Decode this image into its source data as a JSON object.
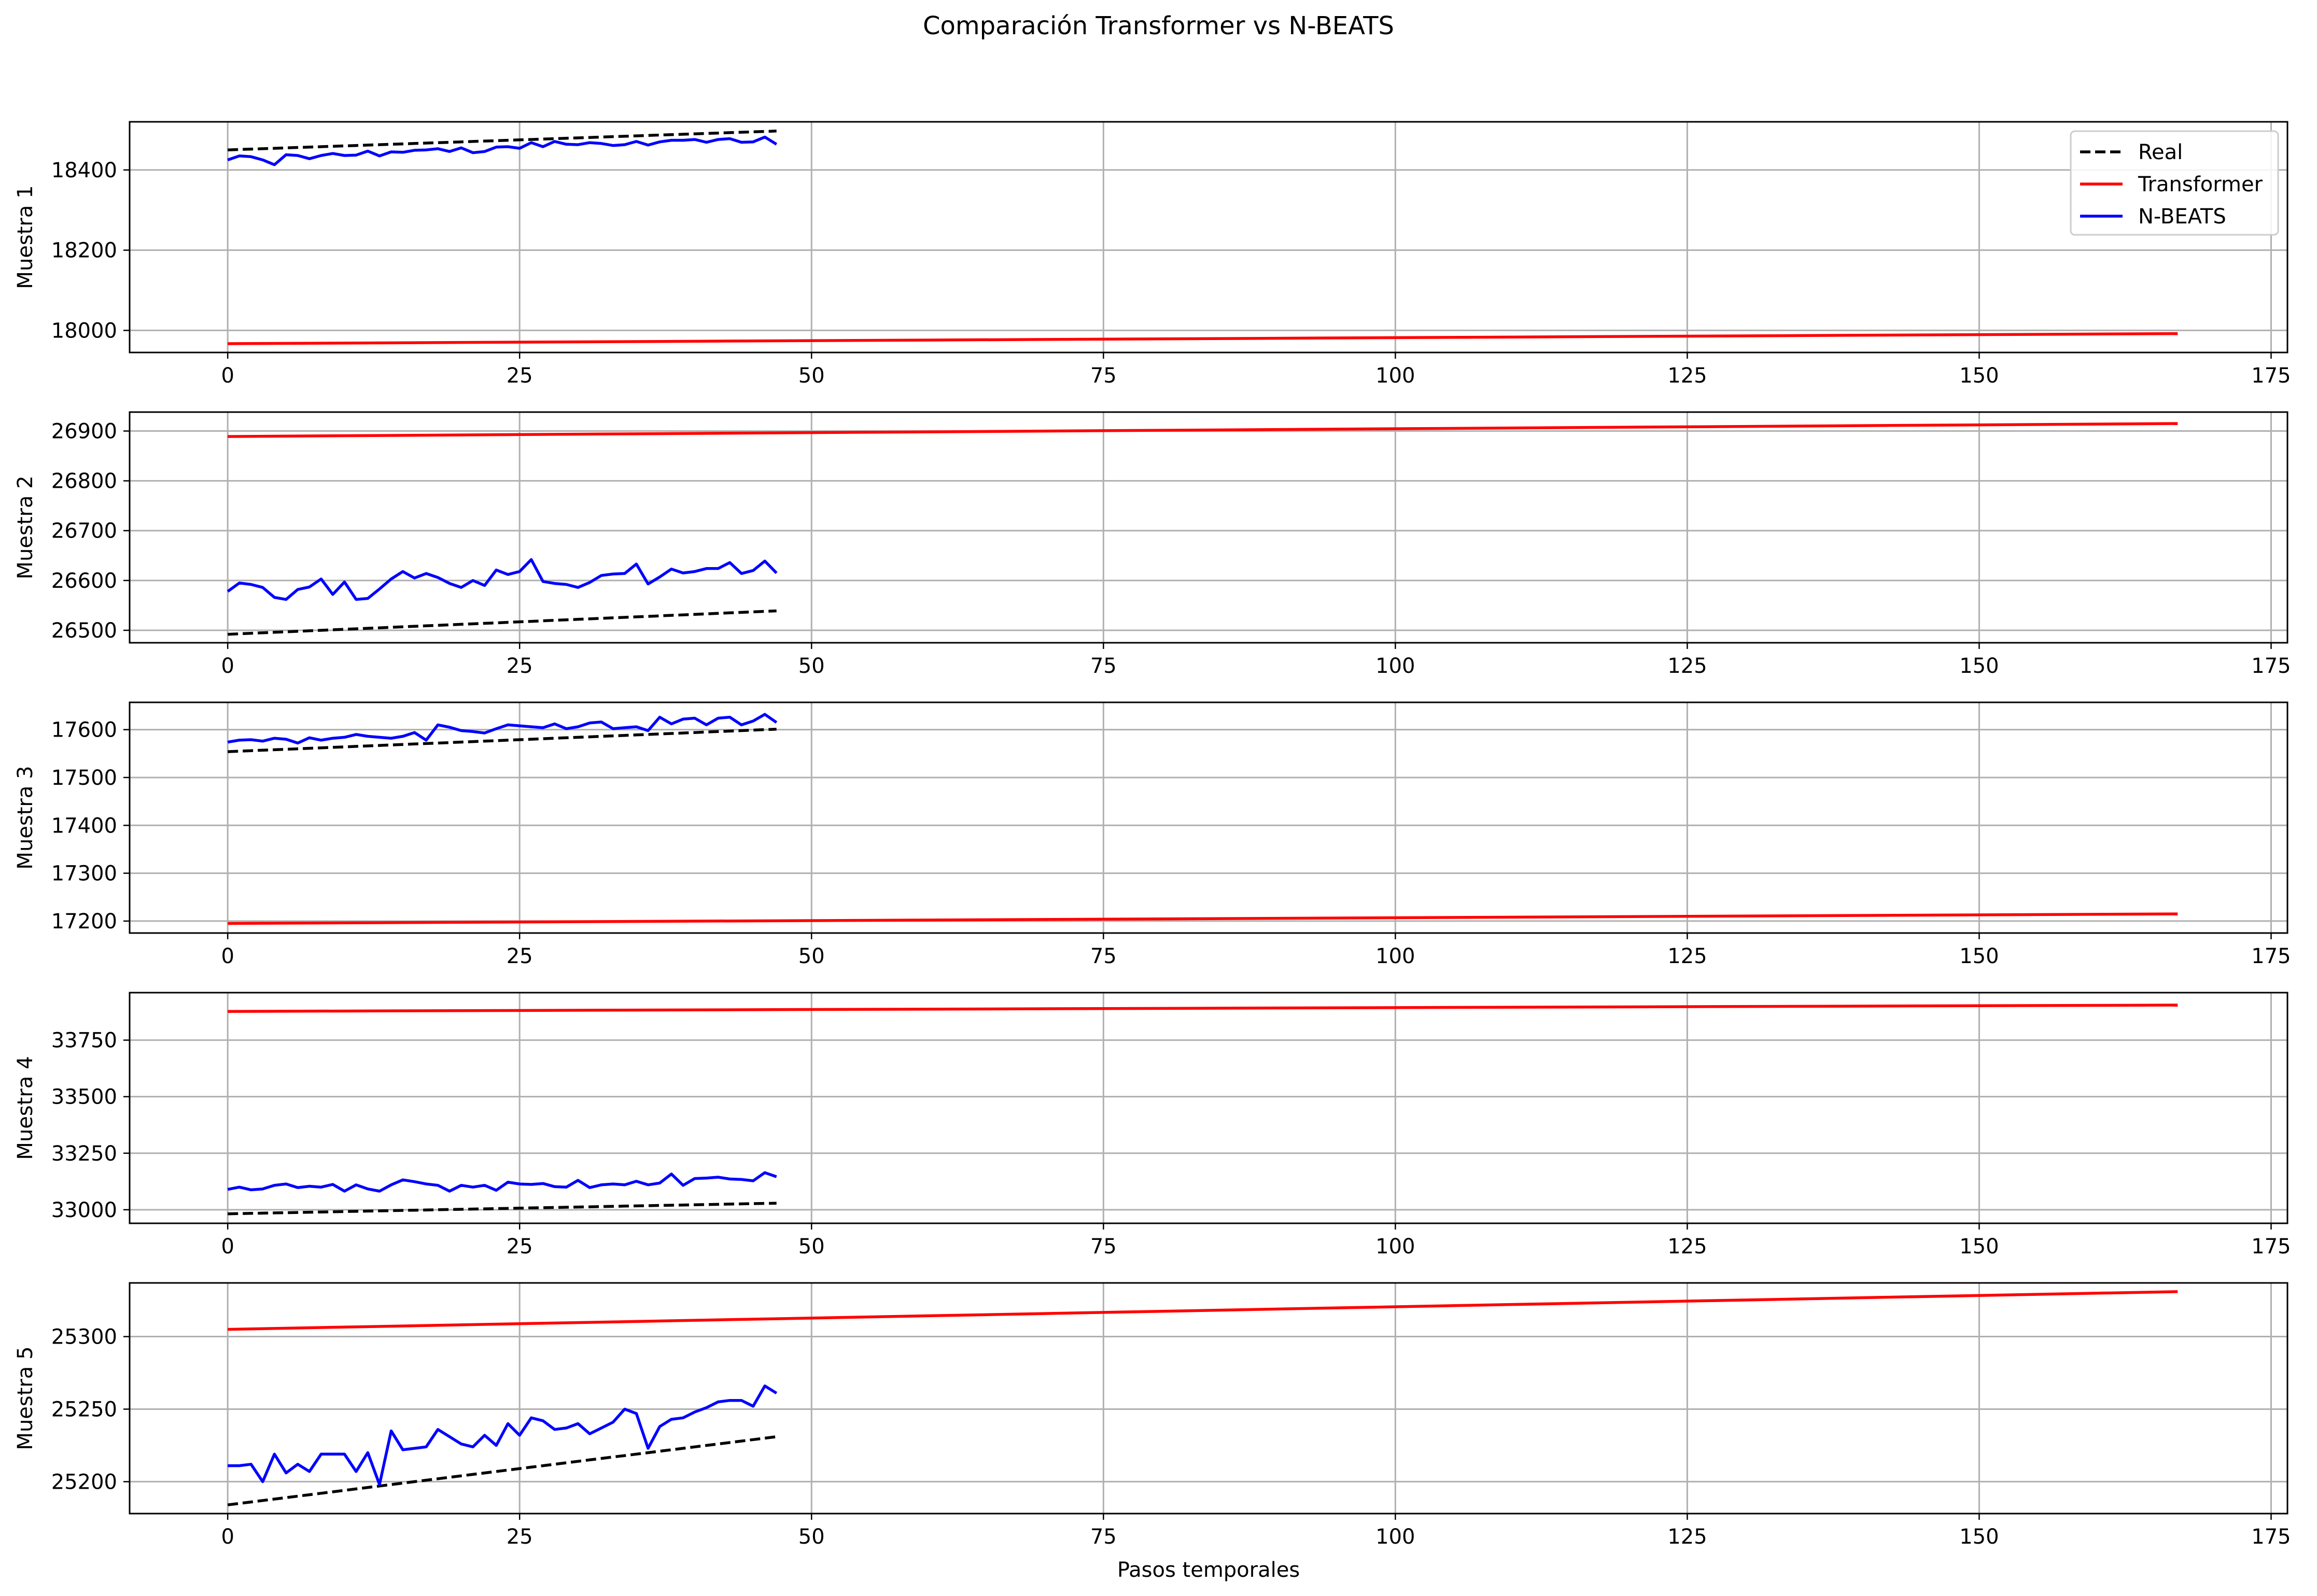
{
  "figure_title": "Comparación Transformer vs N-BEATS",
  "legend": [
    {
      "label": "Real",
      "color": "#000000",
      "dash": true
    },
    {
      "label": "Transformer",
      "color": "#ff0000",
      "dash": false
    },
    {
      "label": "N-BEATS",
      "color": "#0000ff",
      "dash": false
    }
  ],
  "chart_data": [
    {
      "type": "line",
      "ylabel": "Muestra 1",
      "xlabel": "",
      "xlim": [
        -8.4,
        176.4
      ],
      "ylim": [
        17945,
        18520
      ],
      "xticks": [
        0,
        25,
        50,
        75,
        100,
        125,
        150,
        175
      ],
      "yticks": [
        18000,
        18200,
        18400
      ],
      "grid": true,
      "legend_position": "top-right",
      "series": [
        {
          "name": "Real",
          "color": "#000000",
          "dash": true,
          "x_start": 0,
          "values": [
            18450,
            18451,
            18452,
            18453,
            18454,
            18455,
            18456,
            18457,
            18458,
            18459,
            18460,
            18461,
            18462,
            18463,
            18464,
            18465,
            18466,
            18467,
            18468,
            18469,
            18470,
            18471,
            18472,
            18473,
            18474,
            18475,
            18476,
            18477,
            18478,
            18479,
            18480,
            18481,
            18482,
            18483,
            18484,
            18485,
            18486,
            18487,
            18488,
            18489,
            18490,
            18491,
            18492,
            18493,
            18494,
            18495,
            18496,
            18497
          ]
        },
        {
          "name": "Transformer",
          "color": "#ff0000",
          "dash": false,
          "x_start": 0,
          "x_end": 167,
          "y_start": 17967,
          "y_end": 17992
        },
        {
          "name": "N-BEATS",
          "color": "#0000ff",
          "dash": false,
          "x_start": 0,
          "values": [
            18425,
            18435,
            18433,
            18425,
            18413,
            18438,
            18436,
            18428,
            18436,
            18441,
            18436,
            18437,
            18447,
            18435,
            18445,
            18444,
            18449,
            18450,
            18453,
            18446,
            18455,
            18443,
            18446,
            18457,
            18458,
            18454,
            18468,
            18458,
            18471,
            18464,
            18463,
            18468,
            18466,
            18461,
            18463,
            18471,
            18462,
            18470,
            18474,
            18474,
            18476,
            18469,
            18476,
            18478,
            18469,
            18470,
            18482,
            18464
          ]
        }
      ]
    },
    {
      "type": "line",
      "ylabel": "Muestra 2",
      "xlabel": "",
      "xlim": [
        -8.4,
        176.4
      ],
      "ylim": [
        26475,
        26938
      ],
      "xticks": [
        0,
        25,
        50,
        75,
        100,
        125,
        150,
        175
      ],
      "yticks": [
        26500,
        26600,
        26700,
        26800,
        26900
      ],
      "grid": true,
      "series": [
        {
          "name": "Real",
          "color": "#000000",
          "dash": true,
          "x_start": 0,
          "values": [
            26492,
            26493,
            26494,
            26495,
            26496,
            26497,
            26498,
            26499,
            26500,
            26501,
            26502,
            26503,
            26504,
            26505,
            26506,
            26507,
            26508,
            26509,
            26510,
            26511,
            26512,
            26513,
            26514,
            26515,
            26516,
            26517,
            26518,
            26519,
            26520,
            26521,
            26522,
            26523,
            26524,
            26525,
            26526,
            26527,
            26528,
            26529,
            26530,
            26531,
            26532,
            26533,
            26534,
            26535,
            26536,
            26537,
            26538,
            26539
          ]
        },
        {
          "name": "Transformer",
          "color": "#ff0000",
          "dash": false,
          "x_start": 0,
          "x_end": 167,
          "y_start": 26889,
          "y_end": 26915
        },
        {
          "name": "N-BEATS",
          "color": "#0000ff",
          "dash": false,
          "x_start": 0,
          "values": [
            26578,
            26595,
            26592,
            26586,
            26566,
            26562,
            26582,
            26587,
            26603,
            26572,
            26597,
            26562,
            26564,
            26583,
            26603,
            26618,
            26605,
            26614,
            26606,
            26594,
            26586,
            26600,
            26590,
            26621,
            26612,
            26618,
            26642,
            26598,
            26594,
            26592,
            26586,
            26596,
            26610,
            26613,
            26614,
            26633,
            26593,
            26607,
            26623,
            26615,
            26618,
            26624,
            26624,
            26636,
            26614,
            26620,
            26639,
            26615
          ]
        }
      ]
    },
    {
      "type": "line",
      "ylabel": "Muestra 3",
      "xlabel": "",
      "xlim": [
        -8.4,
        176.4
      ],
      "ylim": [
        17175,
        17657
      ],
      "xticks": [
        0,
        25,
        50,
        75,
        100,
        125,
        150,
        175
      ],
      "yticks": [
        17200,
        17300,
        17400,
        17500,
        17600
      ],
      "grid": true,
      "series": [
        {
          "name": "Real",
          "color": "#000000",
          "dash": true,
          "x_start": 0,
          "values": [
            17554,
            17555,
            17556,
            17557,
            17558,
            17559,
            17560,
            17561,
            17562,
            17563,
            17564,
            17565,
            17566,
            17567,
            17568,
            17569,
            17570,
            17571,
            17572,
            17573,
            17574,
            17575,
            17576,
            17577,
            17578,
            17579,
            17580,
            17581,
            17582,
            17583,
            17584,
            17585,
            17586,
            17587,
            17588,
            17589,
            17590,
            17591,
            17592,
            17593,
            17594,
            17595,
            17596,
            17597,
            17598,
            17599,
            17600,
            17601
          ]
        },
        {
          "name": "Transformer",
          "color": "#ff0000",
          "dash": false,
          "x_start": 0,
          "x_end": 167,
          "y_start": 17195,
          "y_end": 17215
        },
        {
          "name": "N-BEATS",
          "color": "#0000ff",
          "dash": false,
          "x_start": 0,
          "values": [
            17574,
            17578,
            17579,
            17576,
            17582,
            17580,
            17572,
            17583,
            17578,
            17582,
            17584,
            17590,
            17586,
            17584,
            17582,
            17586,
            17594,
            17578,
            17610,
            17605,
            17598,
            17596,
            17593,
            17602,
            17610,
            17608,
            17606,
            17604,
            17612,
            17602,
            17606,
            17614,
            17616,
            17602,
            17604,
            17606,
            17598,
            17626,
            17612,
            17622,
            17624,
            17610,
            17624,
            17626,
            17610,
            17618,
            17632,
            17615
          ]
        }
      ]
    },
    {
      "type": "line",
      "ylabel": "Muestra 4",
      "xlabel": "",
      "xlim": [
        -8.4,
        176.4
      ],
      "ylim": [
        32940,
        33960
      ],
      "xticks": [
        0,
        25,
        50,
        75,
        100,
        125,
        150,
        175
      ],
      "yticks": [
        33000,
        33250,
        33500,
        33750
      ],
      "grid": true,
      "series": [
        {
          "name": "Real",
          "color": "#000000",
          "dash": true,
          "x_start": 0,
          "values": [
            32982,
            32983,
            32984,
            32985,
            32986,
            32987,
            32988,
            32989,
            32990,
            32991,
            32992,
            32993,
            32994,
            32995,
            32996,
            32997,
            32998,
            32999,
            33000,
            33001,
            33002,
            33003,
            33004,
            33005,
            33006,
            33007,
            33008,
            33009,
            33010,
            33011,
            33012,
            33013,
            33014,
            33015,
            33016,
            33017,
            33018,
            33019,
            33020,
            33021,
            33022,
            33023,
            33024,
            33025,
            33026,
            33027,
            33028,
            33029
          ]
        },
        {
          "name": "Transformer",
          "color": "#ff0000",
          "dash": false,
          "x_start": 0,
          "x_end": 167,
          "y_start": 33877,
          "y_end": 33905
        },
        {
          "name": "N-BEATS",
          "color": "#0000ff",
          "dash": false,
          "x_start": 0,
          "values": [
            33090,
            33100,
            33088,
            33092,
            33108,
            33114,
            33098,
            33104,
            33100,
            33112,
            33082,
            33110,
            33092,
            33082,
            33110,
            33132,
            33124,
            33114,
            33108,
            33082,
            33108,
            33100,
            33108,
            33086,
            33122,
            33114,
            33112,
            33116,
            33102,
            33100,
            33130,
            33098,
            33110,
            33114,
            33110,
            33126,
            33110,
            33118,
            33158,
            33108,
            33138,
            33140,
            33144,
            33136,
            33134,
            33128,
            33164,
            33146
          ]
        }
      ]
    },
    {
      "type": "line",
      "ylabel": "Muestra 5",
      "xlabel": "Pasos temporales",
      "xlim": [
        -8.4,
        176.4
      ],
      "ylim": [
        25178,
        25337
      ],
      "xticks": [
        0,
        25,
        50,
        75,
        100,
        125,
        150,
        175
      ],
      "yticks": [
        25200,
        25250,
        25300
      ],
      "grid": true,
      "series": [
        {
          "name": "Real",
          "color": "#000000",
          "dash": true,
          "x_start": 0,
          "values": [
            25184,
            25185,
            25186,
            25187,
            25188,
            25189,
            25190,
            25191,
            25192,
            25193,
            25194,
            25195,
            25196,
            25197,
            25198,
            25199,
            25200,
            25201,
            25202,
            25203,
            25204,
            25205,
            25206,
            25207,
            25208,
            25209,
            25210,
            25211,
            25212,
            25213,
            25214,
            25215,
            25216,
            25217,
            25218,
            25219,
            25220,
            25221,
            25222,
            25223,
            25224,
            25225,
            25226,
            25227,
            25228,
            25229,
            25230,
            25231
          ]
        },
        {
          "name": "Transformer",
          "color": "#ff0000",
          "dash": false,
          "x_start": 0,
          "x_end": 167,
          "y_start": 25305,
          "y_end": 25331
        },
        {
          "name": "N-BEATS",
          "color": "#0000ff",
          "dash": false,
          "x_start": 0,
          "values": [
            25211,
            25211,
            25212,
            25200,
            25219,
            25206,
            25212,
            25207,
            25219,
            25219,
            25219,
            25207,
            25220,
            25198,
            25235,
            25222,
            25223,
            25224,
            25236,
            25231,
            25226,
            25224,
            25232,
            25225,
            25240,
            25232,
            25244,
            25242,
            25236,
            25237,
            25240,
            25233,
            25237,
            25241,
            25250,
            25247,
            25223,
            25238,
            25243,
            25244,
            25248,
            25251,
            25255,
            25256,
            25256,
            25252,
            25266,
            25261
          ]
        }
      ]
    }
  ]
}
